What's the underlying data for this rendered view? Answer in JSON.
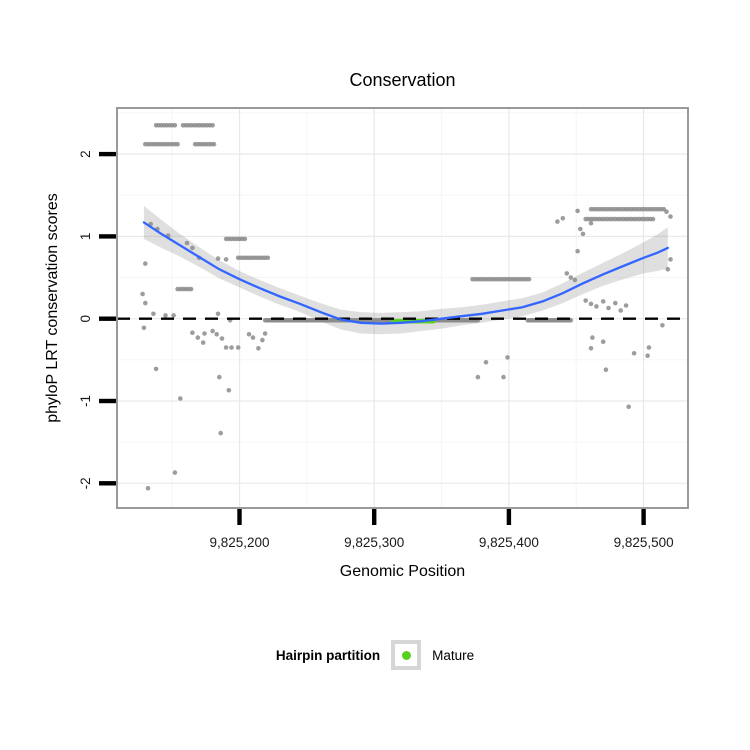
{
  "chart_data": {
    "type": "scatter",
    "title": "Conservation",
    "xlabel": "Genomic Position",
    "ylabel": "phyloP LRT conservation scores",
    "xlim": [
      9825109,
      9825533
    ],
    "ylim": [
      -2.3,
      2.56
    ],
    "grid": "on",
    "x_ticks": [
      {
        "value": 9825200,
        "label": "9,825,200"
      },
      {
        "value": 9825300,
        "label": "9,825,300"
      },
      {
        "value": 9825400,
        "label": "9,825,400"
      },
      {
        "value": 9825500,
        "label": "9,825,500"
      }
    ],
    "y_ticks": [
      {
        "value": 2,
        "label": "2"
      },
      {
        "value": 1,
        "label": "1"
      },
      {
        "value": 0,
        "label": "0"
      },
      {
        "value": -1,
        "label": "-1"
      },
      {
        "value": -2,
        "label": "-2"
      }
    ],
    "x_minor": [
      9825150,
      9825250,
      9825350,
      9825450
    ],
    "y_minor": [
      2.5,
      1.5,
      0.5,
      -0.5,
      -1.5
    ],
    "hline": {
      "y": 0,
      "style": "dashed",
      "color": "#000000"
    },
    "colors": {
      "points": "#8c8c8c",
      "mature": "#58d01e",
      "smooth_line": "#3366ff",
      "smooth_band": "rgba(110,110,110,0.22)",
      "panel_border": "#999999",
      "grid_major": "#e9e9e9",
      "grid_minor": "#f5f5f5",
      "tick": "#000000",
      "tick_label": "#1a1a1a"
    },
    "legend": {
      "title": "Hairpin partition",
      "position": "bottom",
      "entries": [
        {
          "label": "Mature",
          "color": "#58d01e"
        }
      ]
    },
    "series": [
      {
        "name": "phyloP LRT scores (flank)",
        "role": "points",
        "color": "#8c8c8c",
        "runs": [
          [
            9825138,
            9825152,
            2.35,
            2
          ],
          [
            9825158,
            9825180,
            2.35,
            2
          ],
          [
            9825130,
            9825154,
            2.12,
            2
          ],
          [
            9825167,
            9825181,
            2.12,
            2
          ],
          [
            9825190,
            9825204,
            0.97,
            2
          ],
          [
            9825199,
            9825222,
            0.74,
            2
          ],
          [
            9825154,
            9825164,
            0.36,
            2
          ],
          [
            9825219,
            9825313,
            -0.02,
            1
          ],
          [
            9825345,
            9825377,
            -0.02,
            1
          ],
          [
            9825414,
            9825446,
            -0.02,
            1
          ],
          [
            9825373,
            9825416,
            0.48,
            2
          ],
          [
            9825461,
            9825515,
            1.33,
            2
          ],
          [
            9825457,
            9825508,
            1.21,
            2
          ]
        ],
        "points": [
          [
            9825134,
            1.15
          ],
          [
            9825139,
            1.09
          ],
          [
            9825147,
            1.01
          ],
          [
            9825161,
            0.92
          ],
          [
            9825165,
            0.86
          ],
          [
            9825170,
            0.74
          ],
          [
            9825184,
            0.73
          ],
          [
            9825190,
            0.72
          ],
          [
            9825130,
            0.67
          ],
          [
            9825128,
            0.3
          ],
          [
            9825130,
            0.19
          ],
          [
            9825136,
            0.06
          ],
          [
            9825145,
            0.04
          ],
          [
            9825151,
            0.04
          ],
          [
            9825129,
            -0.11
          ],
          [
            9825138,
            -0.61
          ],
          [
            9825156,
            -0.97
          ],
          [
            9825152,
            -1.87
          ],
          [
            9825132,
            -2.06
          ],
          [
            9825184,
            0.06
          ],
          [
            9825193,
            -0.02
          ],
          [
            9825165,
            -0.17
          ],
          [
            9825169,
            -0.23
          ],
          [
            9825173,
            -0.29
          ],
          [
            9825174,
            -0.18
          ],
          [
            9825180,
            -0.15
          ],
          [
            9825183,
            -0.19
          ],
          [
            9825187,
            -0.24
          ],
          [
            9825190,
            -0.35
          ],
          [
            9825194,
            -0.35
          ],
          [
            9825199,
            -0.35
          ],
          [
            9825207,
            -0.19
          ],
          [
            9825210,
            -0.23
          ],
          [
            9825214,
            -0.36
          ],
          [
            9825217,
            -0.26
          ],
          [
            9825219,
            -0.18
          ],
          [
            9825185,
            -0.71
          ],
          [
            9825192,
            -0.87
          ],
          [
            9825186,
            -1.39
          ],
          [
            9825377,
            -0.71
          ],
          [
            9825383,
            -0.53
          ],
          [
            9825396,
            -0.71
          ],
          [
            9825399,
            -0.47
          ],
          [
            9825436,
            1.18
          ],
          [
            9825440,
            1.22
          ],
          [
            9825451,
            1.31
          ],
          [
            9825453,
            1.09
          ],
          [
            9825455,
            1.03
          ],
          [
            9825461,
            1.16
          ],
          [
            9825451,
            0.82
          ],
          [
            9825443,
            0.55
          ],
          [
            9825446,
            0.5
          ],
          [
            9825449,
            0.47
          ],
          [
            9825457,
            0.22
          ],
          [
            9825461,
            0.18
          ],
          [
            9825465,
            0.15
          ],
          [
            9825470,
            0.21
          ],
          [
            9825474,
            0.13
          ],
          [
            9825479,
            0.19
          ],
          [
            9825483,
            0.1
          ],
          [
            9825487,
            0.16
          ],
          [
            9825462,
            -0.23
          ],
          [
            9825470,
            -0.28
          ],
          [
            9825461,
            -0.36
          ],
          [
            9825493,
            -0.42
          ],
          [
            9825503,
            -0.45
          ],
          [
            9825504,
            -0.35
          ],
          [
            9825472,
            -0.62
          ],
          [
            9825489,
            -1.07
          ],
          [
            9825514,
            -0.08
          ],
          [
            9825517,
            1.3
          ],
          [
            9825520,
            1.24
          ],
          [
            9825518,
            0.6
          ],
          [
            9825520,
            0.72
          ]
        ]
      },
      {
        "name": "Mature",
        "role": "mature-points",
        "color": "#58d01e",
        "runs": [
          [
            9825314,
            9825344,
            -0.03,
            1
          ]
        ],
        "points": []
      }
    ],
    "smooth": {
      "line_color": "#3366ff",
      "points": [
        [
          9825129,
          1.17,
          0.2
        ],
        [
          9825142,
          1.03,
          0.17
        ],
        [
          9825155,
          0.9,
          0.14
        ],
        [
          9825170,
          0.75,
          0.12
        ],
        [
          9825185,
          0.6,
          0.11
        ],
        [
          9825200,
          0.48,
          0.1
        ],
        [
          9825215,
          0.37,
          0.1
        ],
        [
          9825230,
          0.27,
          0.1
        ],
        [
          9825245,
          0.18,
          0.1
        ],
        [
          9825260,
          0.08,
          0.11
        ],
        [
          9825275,
          -0.01,
          0.12
        ],
        [
          9825290,
          -0.05,
          0.13
        ],
        [
          9825305,
          -0.06,
          0.13
        ],
        [
          9825320,
          -0.05,
          0.13
        ],
        [
          9825335,
          -0.03,
          0.12
        ],
        [
          9825350,
          0.0,
          0.12
        ],
        [
          9825365,
          0.03,
          0.11
        ],
        [
          9825380,
          0.06,
          0.11
        ],
        [
          9825395,
          0.1,
          0.11
        ],
        [
          9825410,
          0.14,
          0.11
        ],
        [
          9825425,
          0.21,
          0.11
        ],
        [
          9825440,
          0.31,
          0.12
        ],
        [
          9825455,
          0.43,
          0.13
        ],
        [
          9825470,
          0.54,
          0.14
        ],
        [
          9825485,
          0.64,
          0.16
        ],
        [
          9825500,
          0.74,
          0.19
        ],
        [
          9825510,
          0.8,
          0.22
        ],
        [
          9825518,
          0.86,
          0.25
        ]
      ]
    }
  }
}
